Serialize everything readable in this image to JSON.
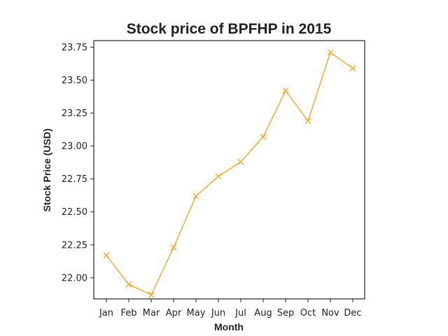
{
  "chart_data": {
    "type": "line",
    "title": "Stock price of BPFHP in 2015",
    "xlabel": "Month",
    "ylabel": "Stock Price (USD)",
    "categories": [
      "Jan",
      "Feb",
      "Mar",
      "Apr",
      "May",
      "Jun",
      "Jul",
      "Aug",
      "Sep",
      "Oct",
      "Nov",
      "Dec"
    ],
    "series": [
      {
        "values": [
          22.17,
          21.95,
          21.87,
          22.23,
          22.62,
          22.77,
          22.88,
          23.07,
          23.42,
          23.19,
          23.71,
          23.59
        ],
        "color": "#f5a623",
        "marker": "x"
      }
    ],
    "ylim": [
      21.84,
      23.8
    ],
    "yticks": [
      "22.00",
      "22.25",
      "22.50",
      "22.75",
      "23.00",
      "23.25",
      "23.50",
      "23.75"
    ],
    "grid": false,
    "legend": "none"
  }
}
